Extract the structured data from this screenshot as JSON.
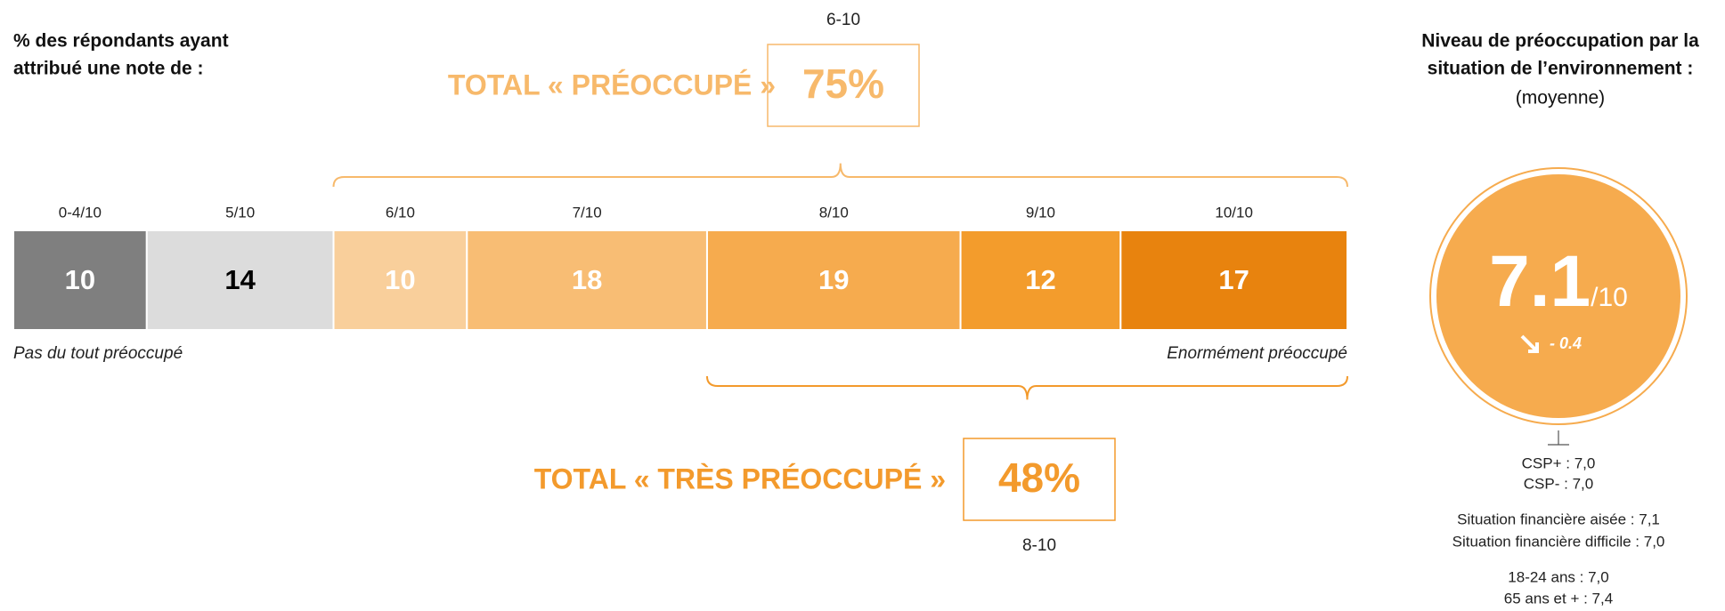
{
  "chart_data": {
    "type": "stacked_bar",
    "header": [
      "% des répondants ayant",
      "attribué une note de :"
    ],
    "categories": [
      "0-4/10",
      "5/10",
      "6/10",
      "7/10",
      "8/10",
      "9/10",
      "10/10"
    ],
    "values": [
      10,
      14,
      10,
      18,
      19,
      12,
      17
    ],
    "colors": [
      "#7f7f7f",
      "#dcdcdc",
      "#f9cf9b",
      "#f8bd74",
      "#f6ab4e",
      "#f39c2c",
      "#e8830e"
    ],
    "label_colors": [
      "#ffffff",
      "#000000",
      "#ffffff",
      "#ffffff",
      "#ffffff",
      "#ffffff",
      "#ffffff"
    ],
    "xlim": [
      0,
      100
    ],
    "low_label": "Pas du tout préoccupé",
    "high_label": "Enormément préoccupé",
    "totals": [
      {
        "range": "6-10",
        "title": "TOTAL « PRÉOCCUPÉ »",
        "value": 75,
        "value_label": "75%",
        "color": "#f7b96b"
      },
      {
        "range": "8-10",
        "title": "TOTAL « TRÈS PRÉOCCUPÉ »",
        "value": 48,
        "value_label": "48%",
        "color": "#f39a2c"
      }
    ],
    "side": {
      "title": [
        "Niveau de préoccupation par la",
        "situation de l’environnement :"
      ],
      "subtitle": "(moyenne)",
      "score": 7.1,
      "scale": "/10",
      "change": {
        "value": -0.4,
        "label": "- 0.4"
      },
      "breakdown": [
        [
          "CSP+ : 7,0",
          "CSP- : 7,0"
        ],
        [
          "Situation financière aisée : 7,1",
          "Situation financière difficile : 7,0"
        ],
        [
          "18-24 ans  : 7,0",
          "65 ans et + : 7,4"
        ]
      ]
    }
  }
}
